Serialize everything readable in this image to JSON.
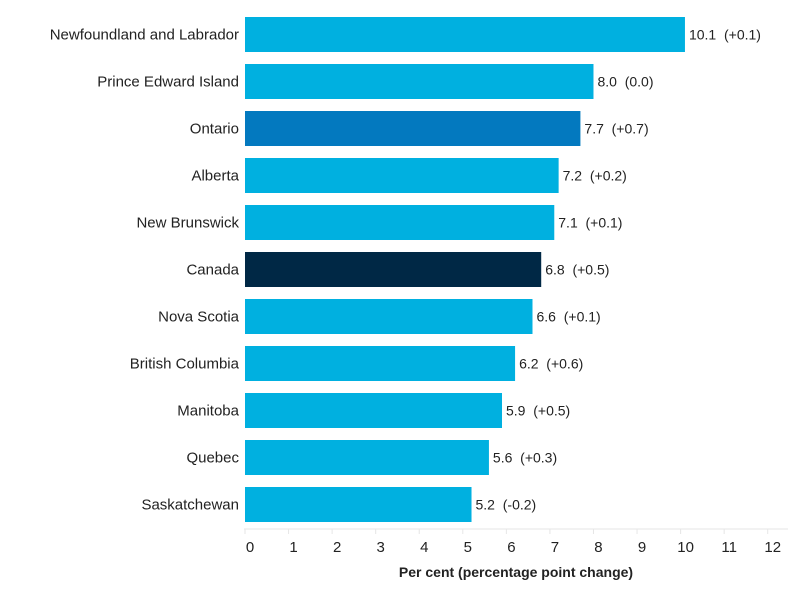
{
  "chart_data": {
    "type": "bar",
    "orientation": "horizontal",
    "categories": [
      "Newfoundland and Labrador",
      "Prince Edward Island",
      "Ontario",
      "Alberta",
      "New Brunswick",
      "Canada",
      "Nova Scotia",
      "British Columbia",
      "Manitoba",
      "Quebec",
      "Saskatchewan"
    ],
    "values": [
      10.1,
      8.0,
      7.7,
      7.2,
      7.1,
      6.8,
      6.6,
      6.2,
      5.9,
      5.6,
      5.2
    ],
    "changes": [
      "+0.1",
      "0.0",
      "+0.7",
      "+0.2",
      "+0.1",
      "+0.5",
      "+0.1",
      "+0.6",
      "+0.5",
      "+0.3",
      "-0.2"
    ],
    "data_labels": [
      "10.1  (+0.1)",
      "8.0  (0.0)",
      "7.7  (+0.7)",
      "7.2  (+0.2)",
      "7.1  (+0.1)",
      "6.8  (+0.5)",
      "6.6  (+0.1)",
      "6.2  (+0.6)",
      "5.9  (+0.5)",
      "5.6  (+0.3)",
      "5.2  (-0.2)"
    ],
    "xlabel": "Per cent (percentage point change)",
    "ylabel": "",
    "xlim": [
      0,
      12
    ],
    "xticks": [
      "0",
      "1",
      "2",
      "3",
      "4",
      "5",
      "6",
      "7",
      "8",
      "9",
      "10",
      "11",
      "12"
    ],
    "grid": false,
    "colors": {
      "default": "#00B0E0",
      "Ontario": "#0379BF",
      "Canada": "#002845"
    }
  }
}
